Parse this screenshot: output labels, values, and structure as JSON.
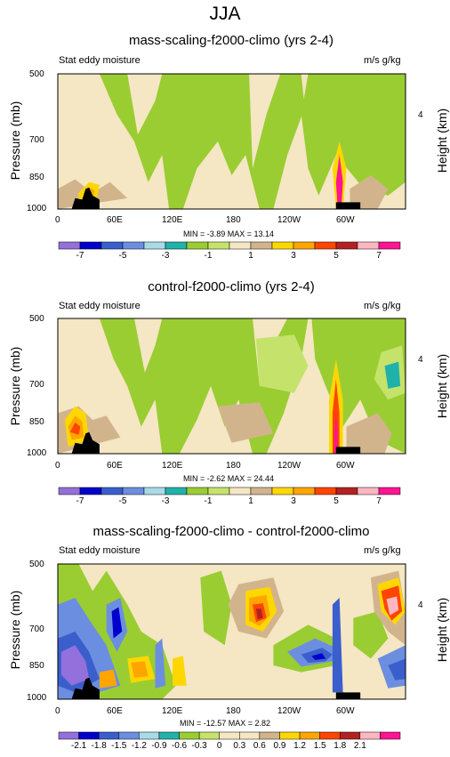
{
  "title": "JJA",
  "chart_data": [
    {
      "type": "contour",
      "title": "mass-scaling-f2000-climo (yrs 2-4)",
      "left_string": "Stat eddy moisture",
      "right_string": "m/s g/kg",
      "ylabel": "Pressure (mb)",
      "right_ylabel": "Height (km)",
      "y_ticks": [
        "500",
        "700",
        "850",
        "1000"
      ],
      "right_ticks": [
        "4"
      ],
      "x_ticks": [
        "0",
        "60E",
        "120E",
        "180",
        "120W",
        "60W"
      ],
      "min_max": "MIN = -3.89  MAX = 13.14",
      "colorbar_labels": [
        "-7",
        "-5",
        "-3",
        "-1",
        "1",
        "3",
        "5",
        "7"
      ]
    },
    {
      "type": "contour",
      "title": "control-f2000-climo (yrs 2-4)",
      "left_string": "Stat eddy moisture",
      "right_string": "m/s g/kg",
      "ylabel": "Pressure (mb)",
      "right_ylabel": "Height (km)",
      "y_ticks": [
        "500",
        "700",
        "850",
        "1000"
      ],
      "right_ticks": [
        "4"
      ],
      "x_ticks": [
        "0",
        "60E",
        "120E",
        "180",
        "120W",
        "60W"
      ],
      "min_max": "MIN = -2.62  MAX = 24.44",
      "colorbar_labels": [
        "-7",
        "-5",
        "-3",
        "-1",
        "1",
        "3",
        "5",
        "7"
      ]
    },
    {
      "type": "contour",
      "title": "mass-scaling-f2000-climo - control-f2000-climo",
      "left_string": "Stat eddy moisture",
      "right_string": "m/s g/kg",
      "ylabel": "Pressure (mb)",
      "right_ylabel": "Height (km)",
      "y_ticks": [
        "500",
        "700",
        "850",
        "1000"
      ],
      "right_ticks": [
        "4"
      ],
      "x_ticks": [
        "0",
        "60E",
        "120E",
        "180",
        "120W",
        "60W"
      ],
      "min_max": "MIN = -12.57  MAX = 2.82",
      "colorbar_labels": [
        "-2.1",
        "-1.8",
        "-1.5",
        "-1.2",
        "-0.9",
        "-0.6",
        "-0.3",
        "0",
        "0.3",
        "0.6",
        "0.9",
        "1.2",
        "1.5",
        "1.8",
        "2.1"
      ]
    }
  ],
  "colors": {
    "palette": [
      "#9370db",
      "#0000cd",
      "#3a5fcd",
      "#6c8ee0",
      "#a8dbe8",
      "#20b2aa",
      "#9acd32",
      "#c5e36b",
      "#f5e6c4",
      "#d2b48c",
      "#ffd700",
      "#ffa500",
      "#ff4500",
      "#b22222",
      "#ffb6c1",
      "#ff1493"
    ]
  }
}
